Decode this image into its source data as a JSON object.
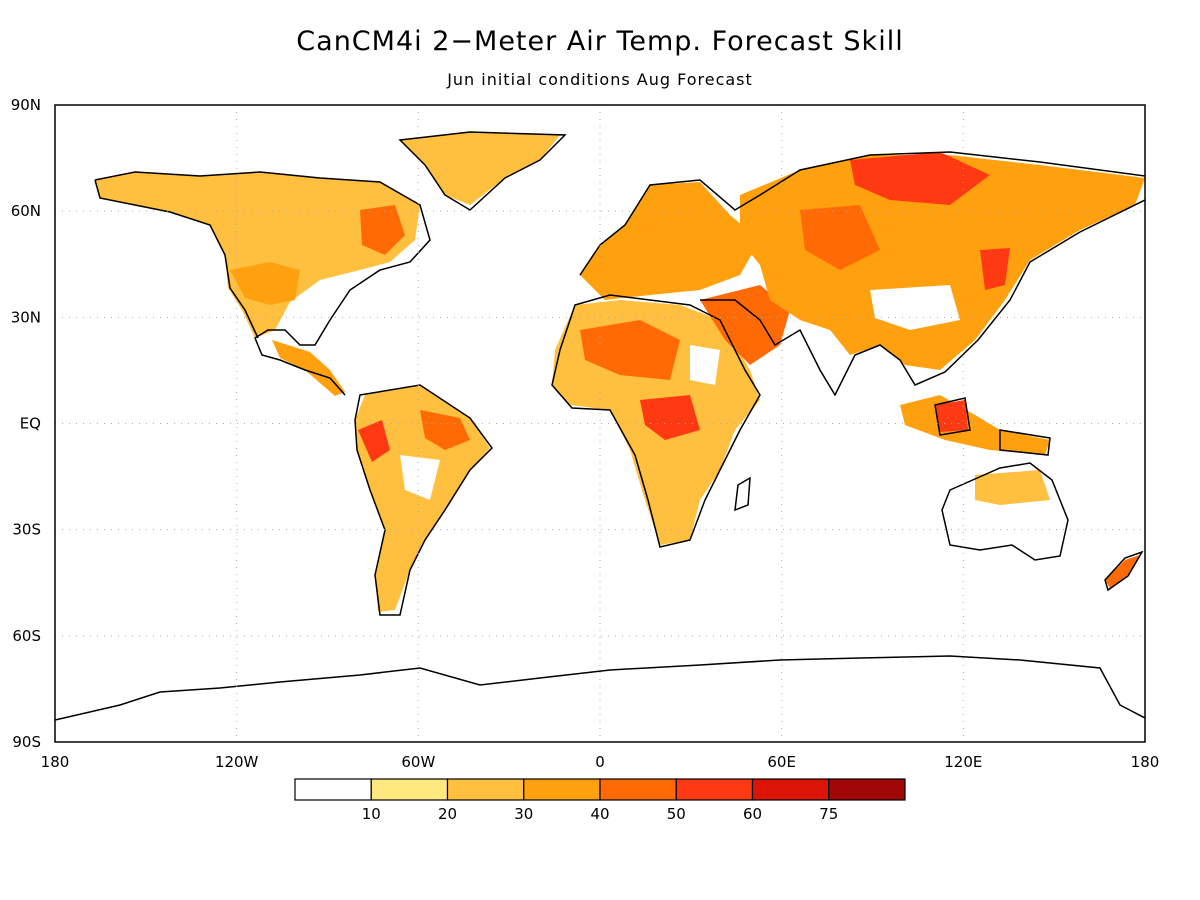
{
  "title": "CanCM4i 2−Meter Air Temp. Forecast Skill",
  "subtitle": "Jun initial conditions  Aug Forecast",
  "lat_labels": [
    "90N",
    "60N",
    "30N",
    "EQ",
    "30S",
    "60S",
    "90S"
  ],
  "lon_labels": [
    "180",
    "120W",
    "60W",
    "0",
    "60E",
    "120E",
    "180"
  ],
  "legend": {
    "colors": [
      "#ffffff",
      "#ffe97f",
      "#ffbf3f",
      "#ffa10f",
      "#ff6a05",
      "#ff3a12",
      "#dc1405",
      "#a00808"
    ],
    "labels": [
      "10",
      "20",
      "30",
      "40",
      "50",
      "60",
      "75"
    ]
  },
  "colors": {
    "land_outline": "#000000",
    "grid": "#aaaaaa"
  }
}
